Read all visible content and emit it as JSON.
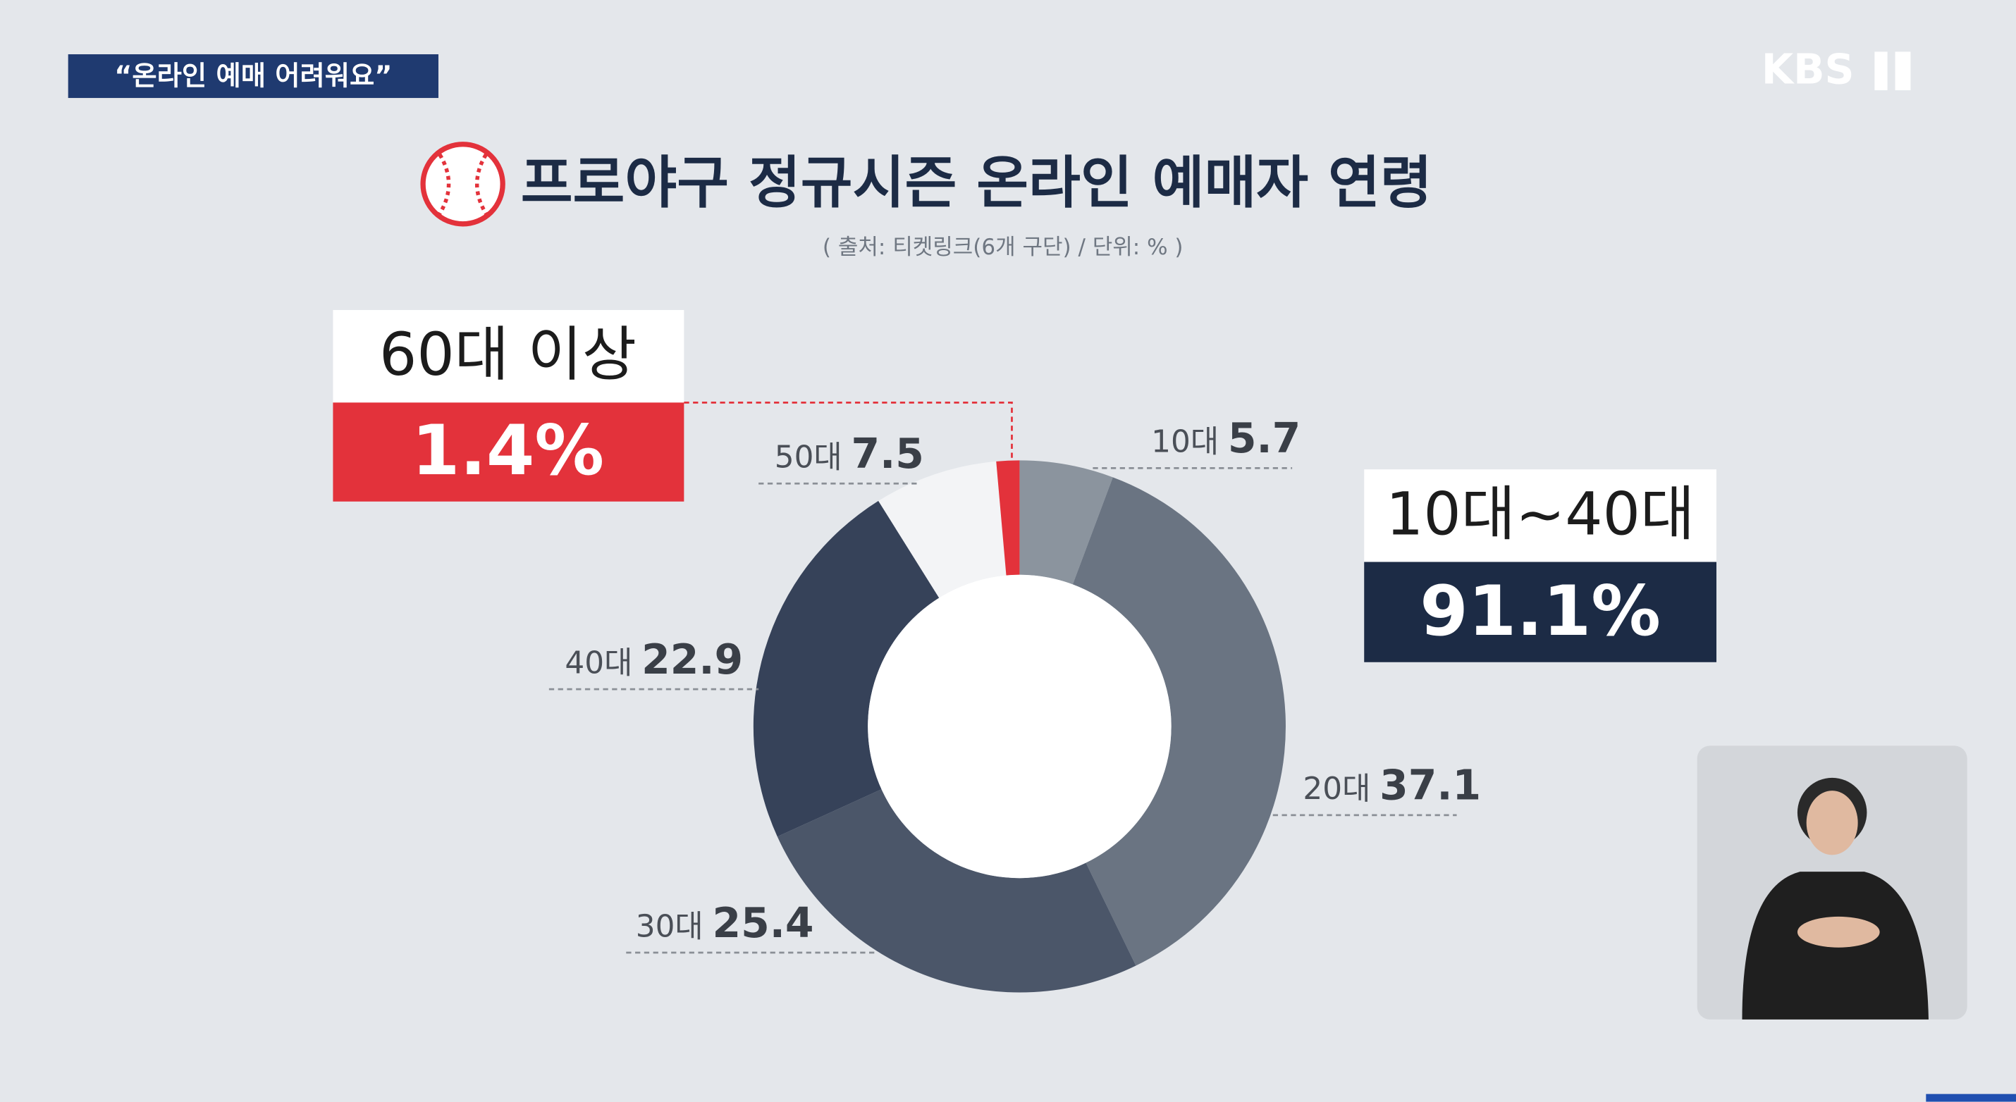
{
  "chart_data": {
    "type": "donut",
    "header": "“온라인 예매 어려워요”",
    "logo": "KBS",
    "title": "프로야구 정규시즌 온라인 예매자 연령",
    "subtitle": "( 출처: 티켓링크(6개 구단) / 단위: % )",
    "categories": [
      "10대",
      "20대",
      "30대",
      "40대",
      "50대",
      "60대 이상"
    ],
    "values": [
      5.7,
      37.1,
      25.4,
      22.9,
      7.5,
      1.4
    ],
    "value_labels": [
      "5.7",
      "37.1",
      "25.4",
      "22.9",
      "7.5",
      "1.4%"
    ],
    "colors": [
      "#8b949e",
      "#6a7482",
      "#4b5669",
      "#364259",
      "#f3f4f6",
      "#e3323b"
    ],
    "annotation": {
      "title": "10대~40대",
      "value": "91.1%"
    }
  }
}
